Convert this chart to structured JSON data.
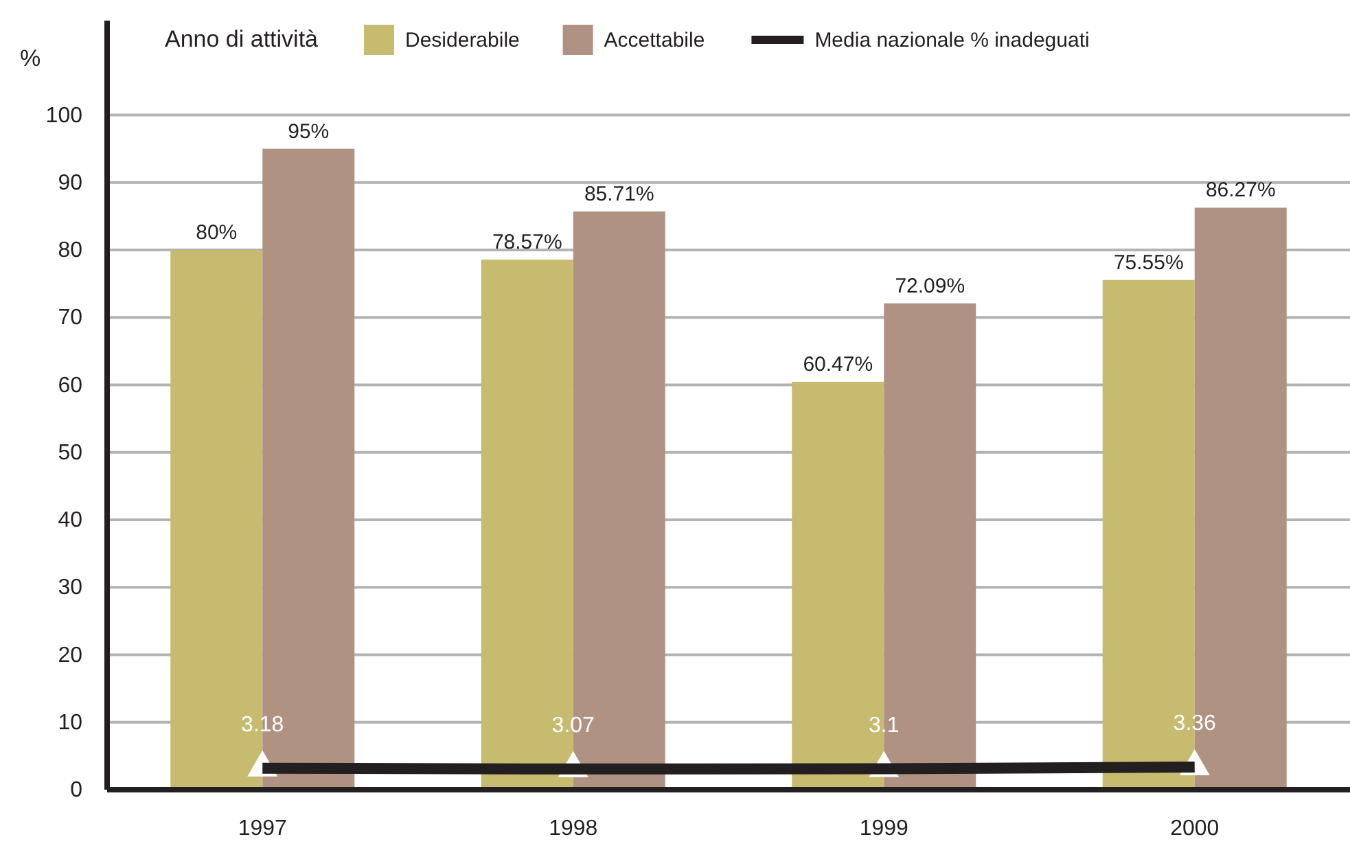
{
  "chart_data": {
    "type": "bar",
    "legend_title": "Anno di attività",
    "ylabel": "%",
    "categories": [
      "1997",
      "1998",
      "1999",
      "2000"
    ],
    "series": [
      {
        "name": "Desiderabile",
        "color": "#c6bb6f",
        "values": [
          80,
          78.57,
          60.47,
          75.55
        ],
        "value_labels": [
          "80%",
          "78.57%",
          "60.47%",
          "75.55%"
        ]
      },
      {
        "name": "Accettabile",
        "color": "#b09282",
        "values": [
          95,
          85.71,
          72.09,
          86.27
        ],
        "value_labels": [
          "95%",
          "85.71%",
          "72.09%",
          "86.27%"
        ]
      },
      {
        "name": "Media nazionale % inadeguati",
        "type": "line",
        "color": "#231f20",
        "marker": "triangle",
        "values": [
          3.18,
          3.07,
          3.1,
          3.36
        ],
        "value_labels": [
          "3.18",
          "3.07",
          "3.1",
          "3.36"
        ]
      }
    ],
    "ylim": [
      0,
      114
    ],
    "yticks": [
      0,
      10,
      20,
      30,
      40,
      50,
      60,
      70,
      80,
      90,
      100
    ],
    "grid": "y",
    "legend": "top"
  }
}
